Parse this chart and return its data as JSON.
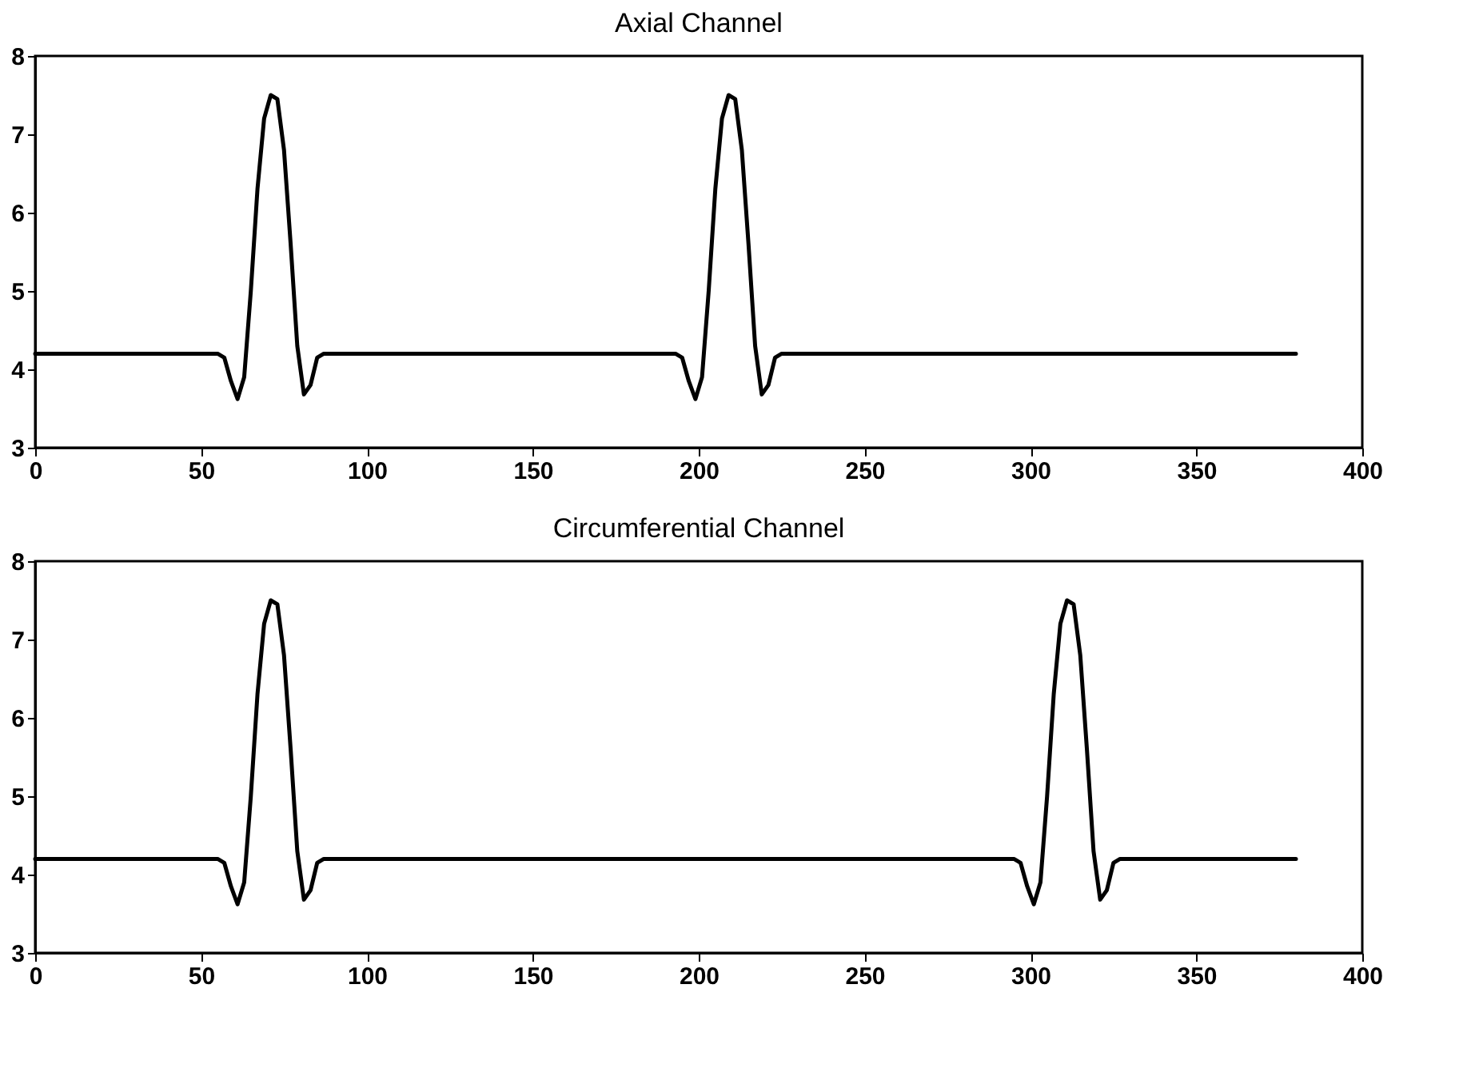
{
  "chart_data": [
    {
      "type": "line",
      "title": "Axial Channel",
      "xlim": [
        0,
        400
      ],
      "xticks": [
        0,
        50,
        100,
        150,
        200,
        250,
        300,
        350,
        400
      ],
      "ylim": [
        3,
        8
      ],
      "yticks": [
        3,
        4,
        5,
        6,
        7,
        8
      ],
      "grid": false,
      "series": [
        {
          "color": "#000000",
          "x": [
            0,
            55,
            57,
            59,
            61,
            63,
            65,
            67,
            69,
            71,
            73,
            75,
            77,
            79,
            81,
            83,
            85,
            87,
            193,
            195,
            197,
            199,
            201,
            203,
            205,
            207,
            209,
            211,
            213,
            215,
            217,
            219,
            221,
            223,
            225,
            380
          ],
          "values": [
            4.2,
            4.2,
            4.15,
            3.85,
            3.62,
            3.9,
            5.0,
            6.3,
            7.2,
            7.5,
            7.45,
            6.8,
            5.6,
            4.3,
            3.68,
            3.8,
            4.15,
            4.2,
            4.2,
            4.15,
            3.85,
            3.62,
            3.9,
            5.0,
            6.3,
            7.2,
            7.5,
            7.45,
            6.8,
            5.6,
            4.3,
            3.68,
            3.8,
            4.15,
            4.2,
            4.2
          ]
        }
      ]
    },
    {
      "type": "line",
      "title": "Circumferential Channel",
      "xlim": [
        0,
        400
      ],
      "xticks": [
        0,
        50,
        100,
        150,
        200,
        250,
        300,
        350,
        400
      ],
      "ylim": [
        3,
        8
      ],
      "yticks": [
        3,
        4,
        5,
        6,
        7,
        8
      ],
      "grid": false,
      "series": [
        {
          "color": "#000000",
          "x": [
            0,
            55,
            57,
            59,
            61,
            63,
            65,
            67,
            69,
            71,
            73,
            75,
            77,
            79,
            81,
            83,
            85,
            87,
            295,
            297,
            299,
            301,
            303,
            305,
            307,
            309,
            311,
            313,
            315,
            317,
            319,
            321,
            323,
            325,
            327,
            380
          ],
          "values": [
            4.2,
            4.2,
            4.15,
            3.85,
            3.62,
            3.9,
            5.0,
            6.3,
            7.2,
            7.5,
            7.45,
            6.8,
            5.6,
            4.3,
            3.68,
            3.8,
            4.15,
            4.2,
            4.2,
            4.15,
            3.85,
            3.62,
            3.9,
            5.0,
            6.3,
            7.2,
            7.5,
            7.45,
            6.8,
            5.6,
            4.3,
            3.68,
            3.8,
            4.15,
            4.2,
            4.2
          ]
        }
      ]
    }
  ]
}
